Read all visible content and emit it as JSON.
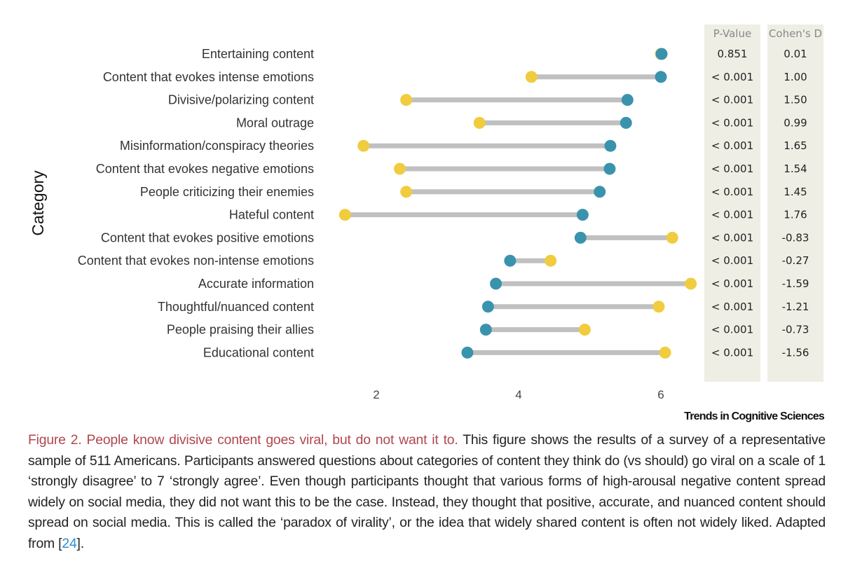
{
  "chart_data": {
    "type": "dumbbell",
    "ylabel": "Category",
    "xlabel": "",
    "xlim": [
      1,
      7.2
    ],
    "xticks": [
      2,
      4,
      6
    ],
    "grid": false,
    "categories": [
      "Entertaining content",
      "Content that evokes intense emotions",
      "Divisive/polarizing content",
      "Moral outrage",
      "Misinformation/conspiracy theories",
      "Content that evokes negative emotions",
      "People criticizing their enemies",
      "Hateful content",
      "Content that evokes positive emotions",
      "Content that evokes non-intense emotions",
      "Accurate information",
      "Thoughtful/nuanced content",
      "People praising their allies",
      "Educational content"
    ],
    "series": [
      {
        "color": "#3a93ad",
        "values": [
          6.01,
          6.0,
          5.53,
          5.51,
          5.29,
          5.28,
          5.14,
          4.9,
          4.87,
          3.88,
          3.68,
          3.57,
          3.54,
          3.28
        ]
      },
      {
        "color": "#f0cc3e",
        "values": [
          6.0,
          4.18,
          2.42,
          3.45,
          1.82,
          2.33,
          2.42,
          1.56,
          6.16,
          4.45,
          6.42,
          5.97,
          4.93,
          6.06
        ]
      }
    ],
    "connector_color": "#c0c0c0",
    "table": {
      "headers": [
        "P-Value",
        "Cohen's D"
      ],
      "p_values": [
        "0.851",
        "< 0.001",
        "< 0.001",
        "< 0.001",
        "< 0.001",
        "< 0.001",
        "< 0.001",
        "< 0.001",
        "< 0.001",
        "< 0.001",
        "< 0.001",
        "< 0.001",
        "< 0.001",
        "< 0.001"
      ],
      "cohens_d": [
        "0.01",
        "1.00",
        "1.50",
        "0.99",
        "1.65",
        "1.54",
        "1.45",
        "1.76",
        "-0.83",
        "-0.27",
        "-1.59",
        "-1.21",
        "-0.73",
        "-1.56"
      ],
      "background": "#efeee4"
    }
  },
  "brand": "Trends in Cognitive Sciences",
  "caption": {
    "title": "Figure 2. People know divisive content goes viral, but do not want it to.",
    "body": " This figure shows the results of a survey of a representative sample of 511 Americans. Participants answered questions about categories of content they think do (vs should) go viral on a scale of 1 ‘strongly disagree’ to 7 ‘strongly agree’. Even though participants thought that various forms of high-arousal negative content spread widely on social media, they did not want this to be the case. Instead, they thought that positive, accurate, and nuanced content should spread on social media. This is called the ‘paradox of virality’, or the idea that widely shared content is often not widely liked. Adapted from [",
    "ref": "24",
    "end": "]."
  }
}
